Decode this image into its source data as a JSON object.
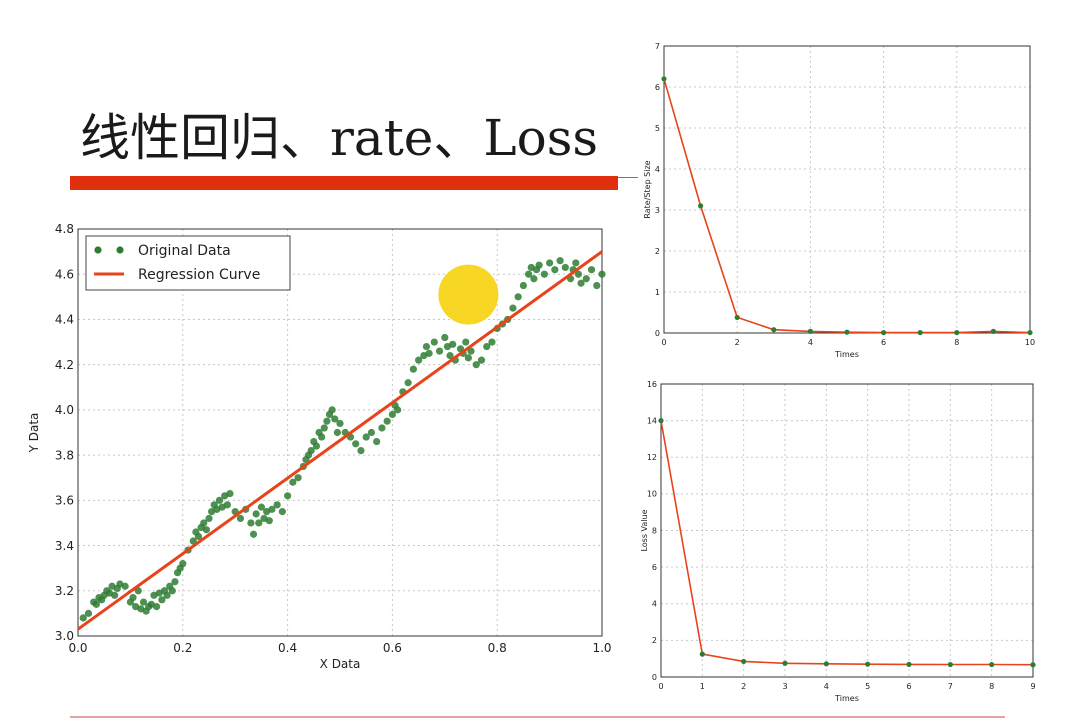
{
  "slide": {
    "title": "线性回归、rate、Loss"
  },
  "colors": {
    "accent_bar": "#e0300e",
    "points": "#2e7d32",
    "regression": "#e8431b",
    "highlight": "#f7d10c"
  },
  "chart_data": [
    {
      "type": "scatter",
      "xlabel": "X Data",
      "ylabel": "Y Data",
      "xlim": [
        0.0,
        1.0
      ],
      "ylim": [
        3.0,
        4.8
      ],
      "xticks": [
        "0.0",
        "0.2",
        "0.4",
        "0.6",
        "0.8",
        "1.0"
      ],
      "yticks": [
        "3.0",
        "3.2",
        "3.4",
        "3.6",
        "3.8",
        "4.0",
        "4.2",
        "4.4",
        "4.6",
        "4.8"
      ],
      "grid": true,
      "legend_position": "top-left",
      "series": [
        {
          "name": "Original Data",
          "type": "scatter",
          "x": [
            0.01,
            0.02,
            0.03,
            0.035,
            0.04,
            0.045,
            0.05,
            0.055,
            0.06,
            0.065,
            0.07,
            0.075,
            0.08,
            0.09,
            0.1,
            0.105,
            0.11,
            0.115,
            0.12,
            0.125,
            0.13,
            0.135,
            0.14,
            0.145,
            0.15,
            0.155,
            0.16,
            0.165,
            0.17,
            0.175,
            0.18,
            0.185,
            0.19,
            0.195,
            0.2,
            0.21,
            0.22,
            0.225,
            0.23,
            0.235,
            0.24,
            0.245,
            0.25,
            0.255,
            0.26,
            0.265,
            0.27,
            0.275,
            0.28,
            0.285,
            0.29,
            0.3,
            0.31,
            0.32,
            0.33,
            0.335,
            0.34,
            0.345,
            0.35,
            0.355,
            0.36,
            0.365,
            0.37,
            0.38,
            0.39,
            0.4,
            0.41,
            0.42,
            0.43,
            0.435,
            0.44,
            0.445,
            0.45,
            0.455,
            0.46,
            0.465,
            0.47,
            0.475,
            0.48,
            0.485,
            0.49,
            0.495,
            0.5,
            0.51,
            0.52,
            0.53,
            0.54,
            0.55,
            0.56,
            0.57,
            0.58,
            0.59,
            0.6,
            0.605,
            0.61,
            0.62,
            0.63,
            0.64,
            0.65,
            0.66,
            0.665,
            0.67,
            0.68,
            0.69,
            0.7,
            0.705,
            0.71,
            0.715,
            0.72,
            0.73,
            0.735,
            0.74,
            0.745,
            0.75,
            0.76,
            0.77,
            0.78,
            0.79,
            0.8,
            0.81,
            0.82,
            0.83,
            0.84,
            0.85,
            0.86,
            0.865,
            0.87,
            0.875,
            0.88,
            0.89,
            0.9,
            0.91,
            0.92,
            0.93,
            0.94,
            0.945,
            0.95,
            0.955,
            0.96,
            0.97,
            0.98,
            0.99,
            1.0
          ],
          "y": [
            3.08,
            3.1,
            3.15,
            3.14,
            3.17,
            3.16,
            3.18,
            3.2,
            3.19,
            3.22,
            3.18,
            3.21,
            3.23,
            3.22,
            3.15,
            3.17,
            3.13,
            3.2,
            3.12,
            3.15,
            3.11,
            3.13,
            3.14,
            3.18,
            3.13,
            3.19,
            3.16,
            3.2,
            3.18,
            3.22,
            3.2,
            3.24,
            3.28,
            3.3,
            3.32,
            3.38,
            3.42,
            3.46,
            3.44,
            3.48,
            3.5,
            3.47,
            3.52,
            3.55,
            3.58,
            3.56,
            3.6,
            3.57,
            3.62,
            3.58,
            3.63,
            3.55,
            3.52,
            3.56,
            3.5,
            3.45,
            3.54,
            3.5,
            3.57,
            3.52,
            3.55,
            3.51,
            3.56,
            3.58,
            3.55,
            3.62,
            3.68,
            3.7,
            3.75,
            3.78,
            3.8,
            3.82,
            3.86,
            3.84,
            3.9,
            3.88,
            3.92,
            3.95,
            3.98,
            4.0,
            3.96,
            3.9,
            3.94,
            3.9,
            3.88,
            3.85,
            3.82,
            3.88,
            3.9,
            3.86,
            3.92,
            3.95,
            3.98,
            4.02,
            4.0,
            4.08,
            4.12,
            4.18,
            4.22,
            4.24,
            4.28,
            4.25,
            4.3,
            4.26,
            4.32,
            4.28,
            4.24,
            4.29,
            4.22,
            4.27,
            4.25,
            4.3,
            4.23,
            4.26,
            4.2,
            4.22,
            4.28,
            4.3,
            4.36,
            4.38,
            4.4,
            4.45,
            4.5,
            4.55,
            4.6,
            4.63,
            4.58,
            4.62,
            4.64,
            4.6,
            4.65,
            4.62,
            4.66,
            4.63,
            4.58,
            4.62,
            4.65,
            4.6,
            4.56,
            4.58,
            4.62,
            4.55,
            4.6
          ]
        },
        {
          "name": "Regression Curve",
          "type": "line",
          "x": [
            0.0,
            1.0
          ],
          "y": [
            3.03,
            4.7
          ]
        }
      ],
      "annotations": [
        {
          "type": "highlight-circle",
          "x": 0.745,
          "y": 4.51
        }
      ]
    },
    {
      "type": "line",
      "xlabel": "Times",
      "ylabel": "Rate/Step Size",
      "xlim": [
        0,
        10
      ],
      "ylim": [
        0,
        7
      ],
      "xticks": [
        "0",
        "2",
        "4",
        "6",
        "8",
        "10"
      ],
      "yticks": [
        "0",
        "1",
        "2",
        "3",
        "4",
        "5",
        "6",
        "7"
      ],
      "grid": true,
      "series": [
        {
          "x": [
            0,
            1,
            2,
            3,
            4,
            5,
            6,
            7,
            8,
            9,
            10
          ],
          "y": [
            6.2,
            3.1,
            0.38,
            0.08,
            0.04,
            0.02,
            0.01,
            0.01,
            0.01,
            0.04,
            0.01
          ]
        }
      ]
    },
    {
      "type": "line",
      "xlabel": "Times",
      "ylabel": "Loss Value",
      "xlim": [
        0,
        9
      ],
      "ylim": [
        0,
        16
      ],
      "xticks": [
        "0",
        "1",
        "2",
        "3",
        "4",
        "5",
        "6",
        "7",
        "8",
        "9"
      ],
      "yticks": [
        "0",
        "2",
        "4",
        "6",
        "8",
        "10",
        "12",
        "14",
        "16"
      ],
      "grid": true,
      "series": [
        {
          "x": [
            0,
            1,
            2,
            3,
            4,
            5,
            6,
            7,
            8,
            9
          ],
          "y": [
            14.0,
            1.25,
            0.85,
            0.75,
            0.72,
            0.7,
            0.69,
            0.68,
            0.68,
            0.67
          ]
        }
      ]
    }
  ]
}
